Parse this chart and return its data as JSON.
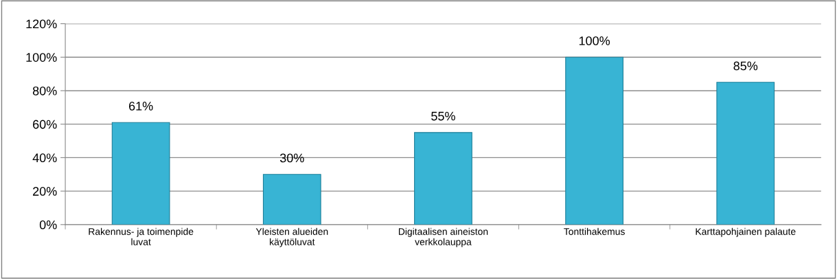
{
  "chart_data": {
    "type": "bar",
    "categories": [
      "Rakennus- ja toimenpide\nluvat",
      "Yleisten alueiden\nkäyttöluvat",
      "Digitaalisen aineiston\nverkkolauppa",
      "Tonttihakemus",
      "Karttapohjainen palaute"
    ],
    "values": [
      61,
      30,
      55,
      100,
      85
    ],
    "value_labels": [
      "61%",
      "30%",
      "55%",
      "100%",
      "85%"
    ],
    "color": "#38b4d4",
    "ylim": [
      0,
      120
    ],
    "yticks": [
      {
        "value": 0,
        "label": "0%"
      },
      {
        "value": 20,
        "label": "20%"
      },
      {
        "value": 40,
        "label": "40%"
      },
      {
        "value": 60,
        "label": "60%"
      },
      {
        "value": 80,
        "label": "80%"
      },
      {
        "value": 100,
        "label": "100%"
      },
      {
        "value": 120,
        "label": "120%"
      }
    ],
    "grid": "y"
  }
}
